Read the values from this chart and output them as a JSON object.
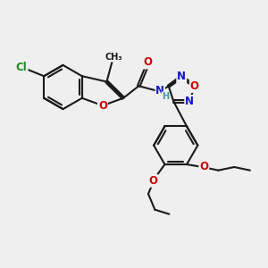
{
  "bg_color": "#efefef",
  "bond_color": "#1a1a1a",
  "bond_width": 1.5,
  "atom_colors": {
    "Cl": "#228B22",
    "O": "#cc0000",
    "N": "#1414cc",
    "H": "#4a9999",
    "C": "#1a1a1a"
  },
  "font_size": 8.5,
  "font_size_h": 7.0
}
